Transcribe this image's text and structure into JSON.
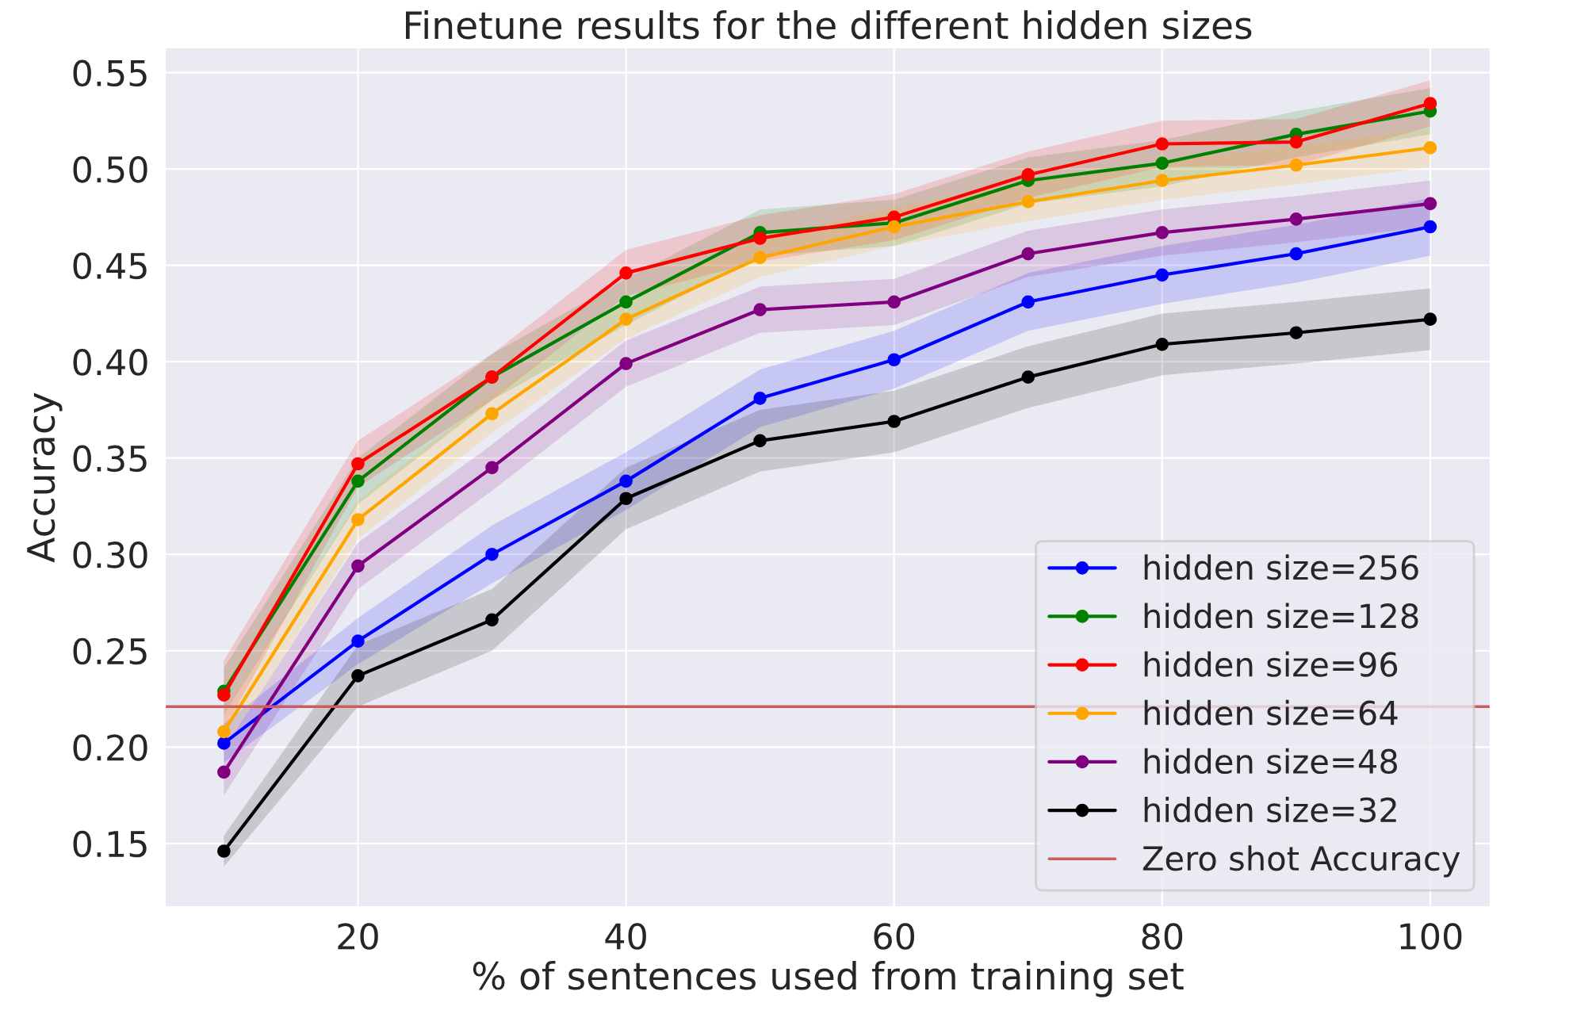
{
  "chart_data": {
    "type": "line",
    "title": "Finetune results for the different hidden sizes",
    "xlabel": "% of sentences used from training set",
    "ylabel": "Accuracy",
    "x": [
      10,
      20,
      30,
      40,
      50,
      60,
      70,
      80,
      90,
      100
    ],
    "series": [
      {
        "name": "hidden size=256",
        "color": "#0000ff",
        "values": [
          0.202,
          0.255,
          0.3,
          0.338,
          0.381,
          0.401,
          0.431,
          0.445,
          0.456,
          0.47
        ],
        "lower": [
          0.192,
          0.243,
          0.285,
          0.323,
          0.366,
          0.386,
          0.416,
          0.43,
          0.441,
          0.455
        ],
        "upper": [
          0.212,
          0.267,
          0.315,
          0.353,
          0.396,
          0.416,
          0.446,
          0.46,
          0.471,
          0.485
        ]
      },
      {
        "name": "hidden size=128",
        "color": "#008000",
        "values": [
          0.229,
          0.338,
          0.392,
          0.431,
          0.467,
          0.472,
          0.494,
          0.503,
          0.518,
          0.53
        ],
        "lower": [
          0.217,
          0.326,
          0.38,
          0.419,
          0.455,
          0.46,
          0.482,
          0.491,
          0.506,
          0.518
        ],
        "upper": [
          0.241,
          0.35,
          0.404,
          0.443,
          0.479,
          0.484,
          0.506,
          0.515,
          0.53,
          0.542
        ]
      },
      {
        "name": "hidden size=96",
        "color": "#ff0000",
        "values": [
          0.227,
          0.347,
          0.392,
          0.446,
          0.464,
          0.475,
          0.497,
          0.513,
          0.514,
          0.534
        ],
        "lower": [
          0.209,
          0.335,
          0.38,
          0.434,
          0.452,
          0.463,
          0.485,
          0.501,
          0.502,
          0.522
        ],
        "upper": [
          0.245,
          0.359,
          0.404,
          0.458,
          0.476,
          0.487,
          0.509,
          0.525,
          0.526,
          0.546
        ]
      },
      {
        "name": "hidden size=64",
        "color": "#ffa500",
        "values": [
          0.208,
          0.318,
          0.373,
          0.422,
          0.454,
          0.47,
          0.483,
          0.494,
          0.502,
          0.511
        ],
        "lower": [
          0.198,
          0.308,
          0.363,
          0.412,
          0.444,
          0.46,
          0.473,
          0.484,
          0.492,
          0.501
        ],
        "upper": [
          0.218,
          0.328,
          0.383,
          0.432,
          0.464,
          0.48,
          0.493,
          0.504,
          0.512,
          0.521
        ]
      },
      {
        "name": "hidden size=48",
        "color": "#800080",
        "values": [
          0.187,
          0.294,
          0.345,
          0.399,
          0.427,
          0.431,
          0.456,
          0.467,
          0.474,
          0.482
        ],
        "lower": [
          0.175,
          0.282,
          0.333,
          0.387,
          0.415,
          0.419,
          0.444,
          0.455,
          0.462,
          0.47
        ],
        "upper": [
          0.199,
          0.306,
          0.357,
          0.411,
          0.439,
          0.443,
          0.468,
          0.479,
          0.486,
          0.494
        ]
      },
      {
        "name": "hidden size=32",
        "color": "#000000",
        "values": [
          0.146,
          0.237,
          0.266,
          0.329,
          0.359,
          0.369,
          0.392,
          0.409,
          0.415,
          0.422
        ],
        "lower": [
          0.138,
          0.221,
          0.25,
          0.313,
          0.343,
          0.353,
          0.376,
          0.393,
          0.399,
          0.406
        ],
        "upper": [
          0.154,
          0.253,
          0.282,
          0.345,
          0.375,
          0.385,
          0.408,
          0.425,
          0.431,
          0.438
        ]
      }
    ],
    "ref_lines": [
      {
        "axis": "y",
        "value": 0.221,
        "label": "Zero shot Accuracy",
        "color": "#cd5c5c"
      }
    ],
    "xlim": [
      5.6,
      104.5
    ],
    "xticks": [
      20,
      40,
      60,
      80,
      100
    ],
    "ylim": [
      0.117,
      0.563
    ],
    "yticks": [
      0.15,
      {
        "value": 0.2,
        "label": "0.20"
      },
      0.25,
      {
        "value": 0.3,
        "label": "0.30"
      },
      0.35,
      {
        "value": 0.4,
        "label": "0.40"
      },
      0.45,
      {
        "value": 0.5,
        "label": "0.50"
      },
      0.55
    ],
    "grid": true,
    "legend": "bottom right",
    "marker": "circle",
    "line_style": "solid"
  }
}
